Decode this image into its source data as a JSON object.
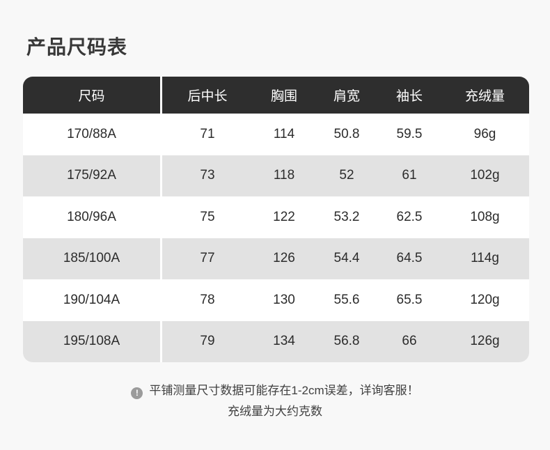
{
  "page": {
    "title": "产品尺码表",
    "background_color": "#f8f8f8"
  },
  "colors": {
    "header_bg": "#2e2e2e",
    "header_text": "#ffffff",
    "row_bg": "#ffffff",
    "row_alt_bg": "#e2e2e2",
    "cell_text": "#2c2c2c",
    "note_icon_bg": "#9b9b9b"
  },
  "table": {
    "columns": [
      "尺码",
      "后中长",
      "胸围",
      "肩宽",
      "袖长",
      "充绒量"
    ],
    "rows": [
      [
        "170/88A",
        "71",
        "114",
        "50.8",
        "59.5",
        "96g"
      ],
      [
        "175/92A",
        "73",
        "118",
        "52",
        "61",
        "102g"
      ],
      [
        "180/96A",
        "75",
        "122",
        "53.2",
        "62.5",
        "108g"
      ],
      [
        "185/100A",
        "77",
        "126",
        "54.4",
        "64.5",
        "114g"
      ],
      [
        "190/104A",
        "78",
        "130",
        "55.6",
        "65.5",
        "120g"
      ],
      [
        "195/108A",
        "79",
        "134",
        "56.8",
        "66",
        "126g"
      ]
    ]
  },
  "note": {
    "icon_glyph": "!",
    "line1": "平铺测量尺寸数据可能存在1-2cm误差，详询客服！",
    "line2": "充绒量为大约克数"
  }
}
